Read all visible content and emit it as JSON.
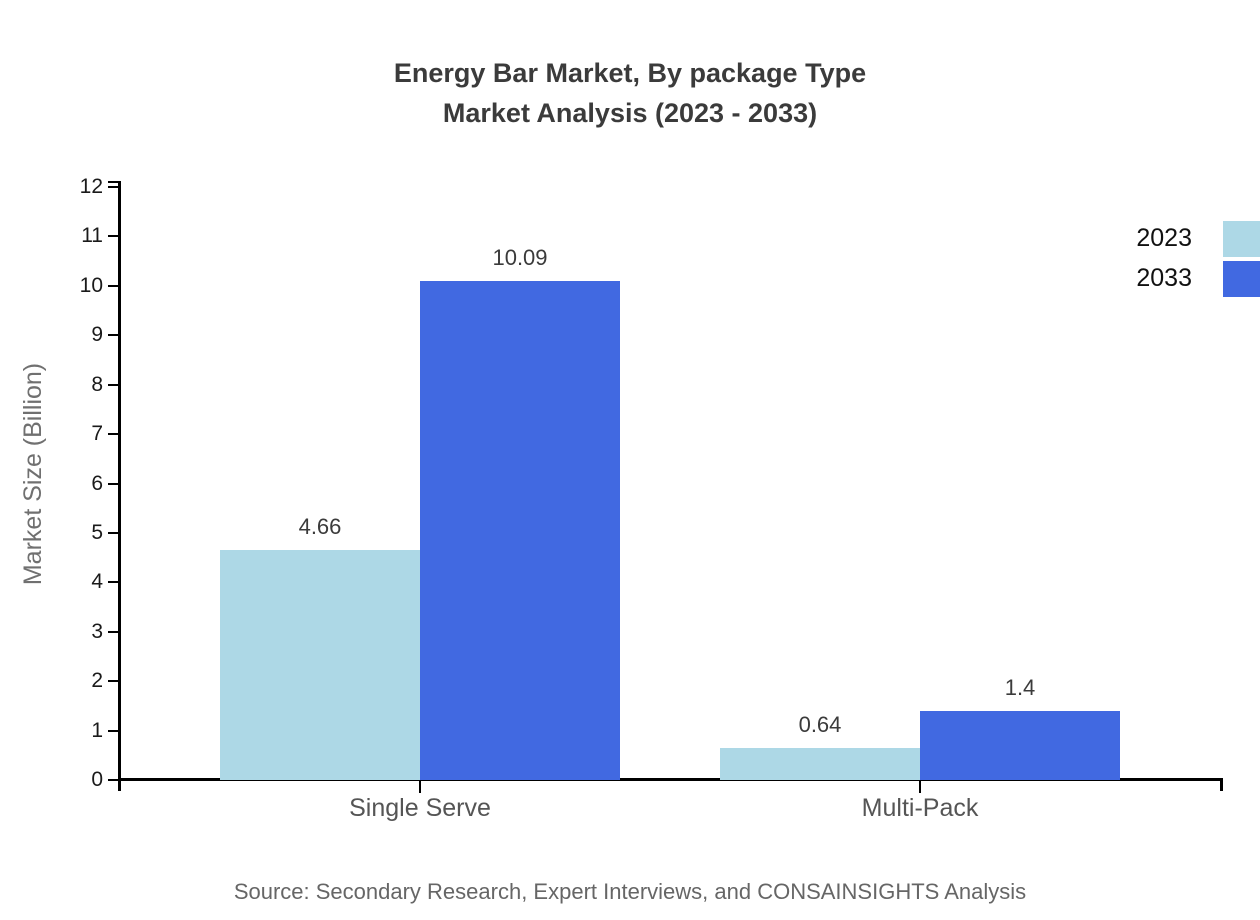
{
  "chart_data": {
    "type": "bar",
    "title": "Energy Bar Market, By package Type",
    "subtitle": "Market Analysis (2023 - 2033)",
    "categories": [
      "Single Serve",
      "Multi-Pack"
    ],
    "series": [
      {
        "name": "2023",
        "color": "#ADD8E6",
        "values": [
          4.66,
          0.64
        ]
      },
      {
        "name": "2033",
        "color": "#4169E1",
        "values": [
          10.09,
          1.4
        ]
      }
    ],
    "value_labels": [
      [
        "4.66",
        "0.64"
      ],
      [
        "10.09",
        "1.4"
      ]
    ],
    "xlabel": "",
    "ylabel": "Market Size (Billion)",
    "ylim": [
      0,
      12
    ],
    "ytick_step": 1,
    "grid": false,
    "legend_position": "top-right",
    "source": "Source: Secondary Research, Expert Interviews, and CONSAINSIGHTS Analysis",
    "colors": {
      "axis": "#000000",
      "title_text": "#3b3b3b",
      "tick_label_text": "#1a1a1a",
      "category_label_text": "#555555",
      "value_label_text": "#3b3b3b",
      "y_axis_label_text": "#707070",
      "source_text": "#666666",
      "legend_text": "#111111",
      "background": "#ffffff"
    }
  }
}
